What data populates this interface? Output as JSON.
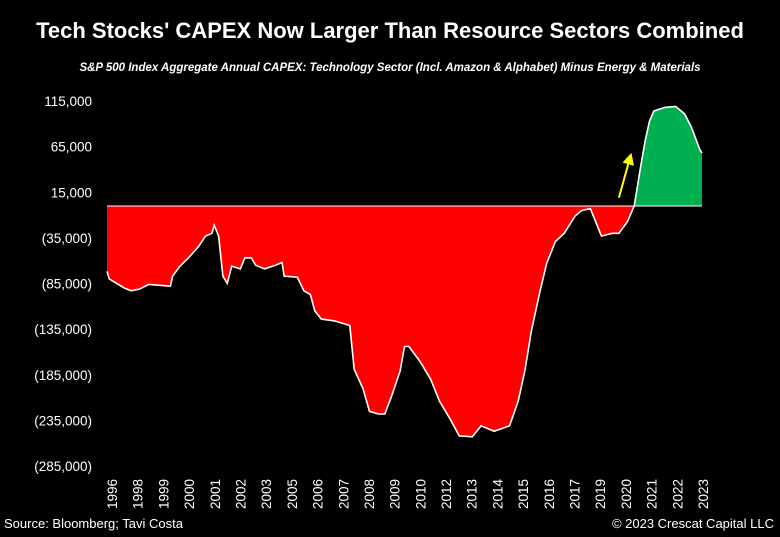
{
  "chart_data": {
    "type": "area",
    "title": "Tech Stocks' CAPEX Now Larger Than Resource Sectors Combined",
    "subtitle": "S&P 500 Index Aggregate Annual CAPEX: Technology Sector (Incl. Amazon & Alphabet) Minus Energy & Materials",
    "xlabel": "",
    "ylabel": "",
    "ylim": [
      -285000,
      115000
    ],
    "xlim": [
      1995.8,
      2023.0
    ],
    "grid": false,
    "y_ticks": [
      115000,
      65000,
      15000,
      -35000,
      -85000,
      -135000,
      -185000,
      -235000,
      -285000
    ],
    "y_tick_labels": [
      "115,000",
      "65,000",
      "15,000",
      "(35,000)",
      "(85,000)",
      "(135,000)",
      "(185,000)",
      "(235,000)",
      "(285,000)"
    ],
    "x_tick_labels": [
      "1996",
      "1998",
      "1999",
      "2000",
      "2001",
      "2002",
      "2003",
      "2005",
      "2006",
      "2007",
      "2008",
      "2009",
      "2010",
      "2012",
      "2013",
      "2014",
      "2015",
      "2016",
      "2017",
      "2019",
      "2020",
      "2021",
      "2022",
      "2023"
    ],
    "colors": {
      "negative": "#ff0000",
      "positive": "#00b050",
      "line": "#ffffff",
      "arrow": "#ffff00",
      "background": "#000000"
    },
    "x": [
      1995.8,
      1995.9,
      1996.6,
      1996.9,
      1997.3,
      1997.7,
      1998.2,
      1998.7,
      1998.8,
      1999.1,
      1999.6,
      2000.0,
      2000.3,
      2000.6,
      2000.7,
      2000.9,
      2001.1,
      2001.3,
      2001.5,
      2001.9,
      2002.1,
      2002.4,
      2002.6,
      2003.0,
      2003.5,
      2003.8,
      2003.9,
      2004.5,
      2004.8,
      2005.1,
      2005.3,
      2005.6,
      2006.2,
      2006.9,
      2007.1,
      2007.5,
      2007.8,
      2008.2,
      2008.5,
      2008.8,
      2009.2,
      2009.4,
      2009.6,
      2010.1,
      2010.6,
      2011.0,
      2011.5,
      2011.9,
      2012.5,
      2012.9,
      2013.5,
      2014.2,
      2014.6,
      2014.9,
      2015.2,
      2015.6,
      2015.9,
      2016.3,
      2016.7,
      2017.2,
      2017.5,
      2017.9,
      2018.1,
      2018.4,
      2018.9,
      2019.2,
      2019.6,
      2019.9,
      2020.2,
      2020.4,
      2020.6,
      2020.8,
      2021.3,
      2021.8,
      2022.2,
      2022.5,
      2022.9,
      2023.0
    ],
    "values": [
      -71600,
      -80000,
      -90000,
      -93000,
      -91000,
      -86000,
      -87000,
      -88000,
      -77000,
      -67000,
      -55000,
      -44000,
      -33000,
      -30000,
      -21000,
      -33000,
      -77000,
      -85000,
      -66000,
      -69000,
      -57000,
      -57000,
      -65000,
      -69000,
      -65000,
      -62000,
      -77000,
      -78000,
      -93000,
      -97000,
      -115000,
      -124000,
      -126000,
      -131000,
      -179000,
      -200000,
      -225000,
      -228000,
      -228000,
      -209000,
      -181000,
      -154000,
      -154000,
      -170000,
      -190000,
      -214000,
      -234000,
      -252000,
      -253000,
      -241000,
      -247000,
      -241000,
      -214000,
      -181000,
      -137000,
      -93000,
      -63000,
      -39000,
      -30000,
      -11000,
      -5000,
      -3000,
      -15000,
      -33000,
      -30000,
      -30000,
      -17000,
      0,
      44000,
      71000,
      93000,
      104000,
      108000,
      109000,
      101000,
      87000,
      62000,
      58000
    ],
    "annotations": [
      {
        "type": "arrow",
        "from": [
          2019.2,
          9000
        ],
        "to": [
          2019.7,
          52000
        ]
      }
    ]
  },
  "footer": {
    "source": "Source: Bloomberg; Tavi Costa",
    "copyright": "© 2023 Crescat Capital LLC"
  }
}
